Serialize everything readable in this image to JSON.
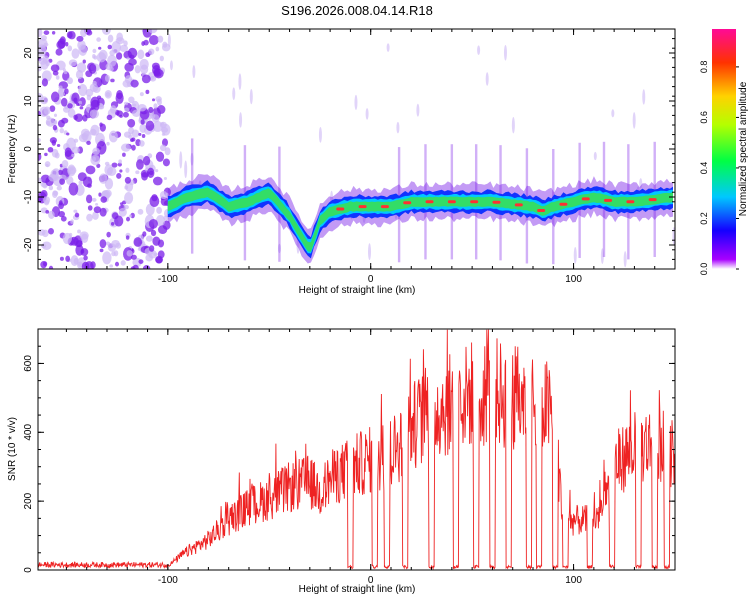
{
  "title": "S196.2026.008.04.14.R18",
  "colors": {
    "snr_line": "#ee2222",
    "band_core": "#ff3030",
    "band_mid": "#33dd66",
    "band_edge": "#1133ff",
    "noise_purple": "#7a1ee8",
    "noise_light": "#cdb8f5"
  },
  "chart_data": [
    {
      "type": "heatmap",
      "title": "S196.2026.008.04.14.R18",
      "xlabel": "Height of straight line (km)",
      "ylabel": "Frequency (Hz)",
      "xlim": [
        -164,
        150
      ],
      "ylim": [
        -25,
        25
      ],
      "xticks": [
        -100,
        0,
        100
      ],
      "yticks": [
        -20,
        -10,
        0,
        10,
        20
      ],
      "colorbar": {
        "label": "Normalized spectral amplitude",
        "range": [
          0,
          0.95
        ],
        "ticks": [
          0.0,
          0.2,
          0.4,
          0.6,
          0.8
        ],
        "colormap": [
          "#ffffff",
          "#a800ff",
          "#1400ff",
          "#00c8ff",
          "#00ff44",
          "#b4ff00",
          "#ffd200",
          "#ff3200",
          "#ff0a96"
        ]
      },
      "noise_region_x": [
        -164,
        -100
      ],
      "band_track": {
        "x": [
          -100,
          -90,
          -80,
          -70,
          -60,
          -50,
          -40,
          -30,
          -25,
          -20,
          -10,
          0,
          10,
          20,
          40,
          60,
          80,
          85,
          90,
          100,
          110,
          120,
          130,
          150
        ],
        "freq": [
          -12,
          -10,
          -9,
          -12,
          -11,
          -9,
          -14,
          -21,
          -15,
          -13,
          -12,
          -12,
          -12,
          -11,
          -11,
          -11,
          -12,
          -13,
          -12,
          -11,
          -10,
          -11,
          -11,
          -10
        ]
      },
      "vertical_streaks_x": [
        -88,
        -62,
        -45,
        14,
        27,
        40,
        52,
        64,
        77,
        90,
        103,
        115,
        127,
        140
      ]
    },
    {
      "type": "line",
      "xlabel": "Height of straight line (km)",
      "ylabel": "SNR (10 * v/v)",
      "xlim": [
        -164,
        150
      ],
      "ylim": [
        0,
        700
      ],
      "xticks": [
        -100,
        0,
        100
      ],
      "yticks": [
        0,
        200,
        400,
        600
      ],
      "envelope": {
        "x": [
          -164,
          -100,
          -92,
          -80,
          -70,
          -60,
          -50,
          -40,
          -30,
          -25,
          -20,
          -10,
          0,
          10,
          20,
          30,
          40,
          50,
          60,
          70,
          80,
          90,
          95,
          100,
          110,
          115,
          120,
          130,
          140,
          150
        ],
        "y": [
          15,
          15,
          60,
          110,
          180,
          230,
          260,
          300,
          320,
          280,
          330,
          370,
          400,
          420,
          520,
          580,
          600,
          640,
          650,
          620,
          640,
          560,
          180,
          180,
          180,
          230,
          380,
          440,
          460,
          430
        ]
      },
      "dropouts_x": [
        -10,
        2,
        8,
        17,
        30,
        42,
        52,
        60,
        68,
        78,
        83,
        91,
        96,
        108,
        119,
        132,
        140,
        146
      ]
    }
  ]
}
